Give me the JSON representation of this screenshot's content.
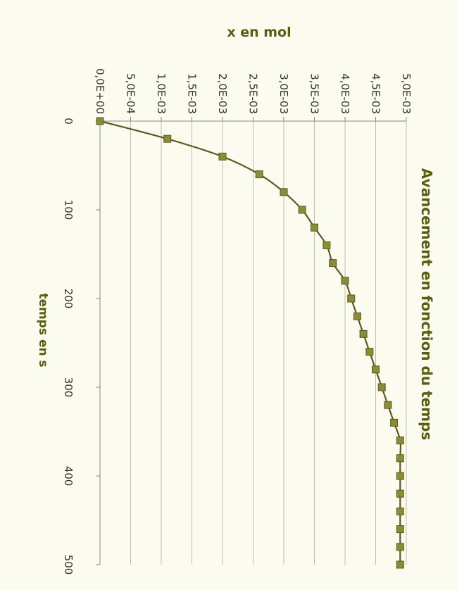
{
  "chart_data": {
    "type": "line",
    "title": "Avancement en fonction du temps",
    "xlabel": "temps en s",
    "ylabel": "x en mol",
    "x_ticks": [
      0,
      100,
      200,
      300,
      400,
      500
    ],
    "x_tick_labels": [
      "0",
      "100",
      "200",
      "300",
      "400",
      "500"
    ],
    "y_ticks": [
      0,
      0.0005,
      0.001,
      0.0015,
      0.002,
      0.0025,
      0.003,
      0.0035,
      0.004,
      0.0045,
      0.005
    ],
    "y_tick_labels": [
      "0,0E+00",
      "5,0E-04",
      "1,0E-03",
      "1,5E-03",
      "2,0E-03",
      "2,5E-03",
      "3,0E-03",
      "3,5E-03",
      "4,0E-03",
      "4,5E-03",
      "5,0E-03"
    ],
    "xlim": [
      0,
      500
    ],
    "ylim": [
      0,
      0.005
    ],
    "grid": true,
    "series": [
      {
        "x": [
          0,
          20,
          40,
          60,
          80,
          100,
          120,
          140,
          160,
          180,
          200,
          220,
          240,
          260,
          280,
          300,
          320,
          340,
          360,
          380,
          400,
          420,
          440,
          460,
          480,
          500
        ],
        "y": [
          0.0,
          0.0011,
          0.002,
          0.0026,
          0.003,
          0.0033,
          0.0035,
          0.0037,
          0.0038,
          0.004,
          0.0041,
          0.0042,
          0.0043,
          0.0044,
          0.0045,
          0.0046,
          0.0047,
          0.0048,
          0.0049,
          0.0049,
          0.0049,
          0.0049,
          0.0049,
          0.0049,
          0.0049,
          0.0049
        ]
      }
    ],
    "colors": {
      "line": "#5c5a22",
      "marker": "#8d8c36",
      "text": "#56600f",
      "grid": "#bdbdb0",
      "background": "#fbfbef"
    }
  }
}
